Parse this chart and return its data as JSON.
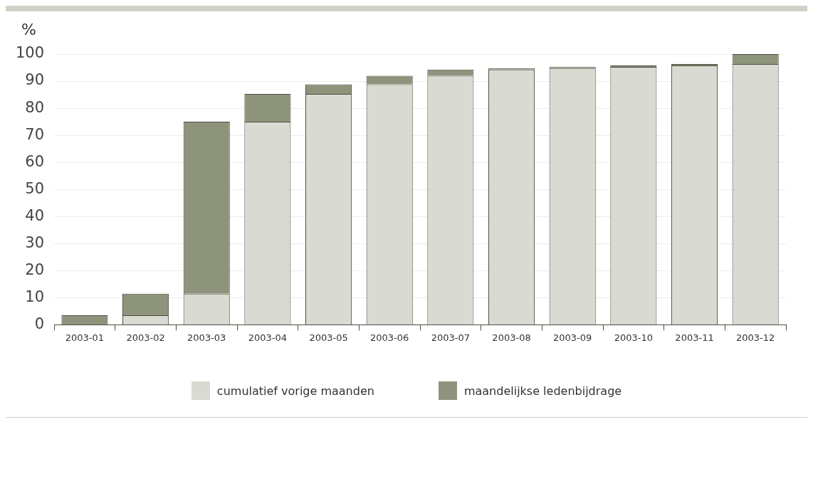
{
  "chart_data": {
    "type": "bar",
    "ylabel": "%",
    "categories": [
      "2003-01",
      "2003-02",
      "2003-03",
      "2003-04",
      "2003-05",
      "2003-06",
      "2003-07",
      "2003-08",
      "2003-09",
      "2003-10",
      "2003-11",
      "2003-12"
    ],
    "series": [
      {
        "name": "cumulatief vorige maanden",
        "color": "#d9dad1",
        "values": [
          0,
          3.5,
          11.5,
          75,
          85.3,
          88.8,
          92,
          94.3,
          94.8,
          95.3,
          95.8,
          96.3
        ]
      },
      {
        "name": "maandelijkse ledenbijdrage",
        "color": "#8e947c",
        "values": [
          3.5,
          8,
          63.5,
          10.3,
          3.5,
          3.2,
          2.3,
          0.5,
          0.5,
          0.5,
          0.5,
          3.7
        ]
      }
    ],
    "stacked": true,
    "ylim": [
      0,
      100
    ],
    "yticks": [
      0,
      10,
      20,
      30,
      40,
      50,
      60,
      70,
      80,
      90,
      100
    ],
    "grid": "y",
    "legend": "bottom"
  }
}
